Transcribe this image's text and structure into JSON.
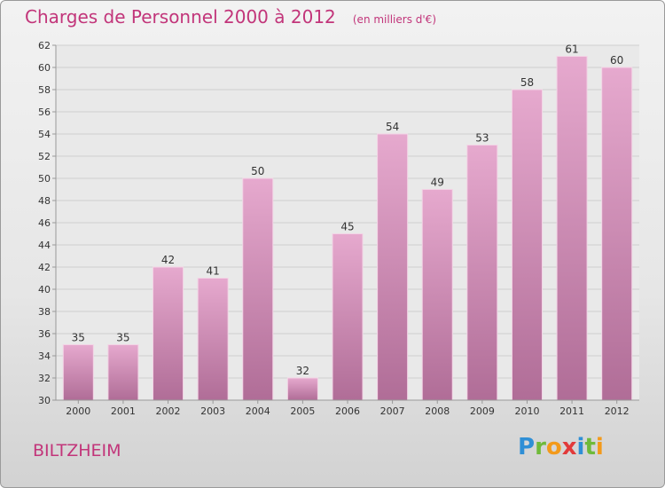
{
  "title": "Charges de Personnel 2000 à 2012",
  "subtitle": "(en milliers d'€)",
  "commune": "BILTZHEIM",
  "brand": {
    "letters": [
      "P",
      "r",
      "o",
      "x",
      "i",
      "t",
      "i"
    ],
    "colors": [
      "#2f8fd6",
      "#6fba3a",
      "#f39a1b",
      "#e23a3a",
      "#2f8fd6",
      "#6fba3a",
      "#f39a1b"
    ]
  },
  "colors": {
    "bar": "#d98cb8",
    "bar_dark": "#b76a98",
    "title": "#c2357a"
  },
  "chart_data": {
    "type": "bar",
    "title": "Charges de Personnel 2000 à 2012",
    "subtitle": "(en milliers d'€)",
    "categories": [
      "2000",
      "2001",
      "2002",
      "2003",
      "2004",
      "2005",
      "2006",
      "2007",
      "2008",
      "2009",
      "2010",
      "2011",
      "2012"
    ],
    "values": [
      35,
      35,
      42,
      41,
      50,
      32,
      45,
      54,
      49,
      53,
      58,
      61,
      60
    ],
    "ylim": [
      30,
      62
    ],
    "yticks": [
      30,
      32,
      34,
      36,
      38,
      40,
      42,
      44,
      46,
      48,
      50,
      52,
      54,
      56,
      58,
      60,
      62
    ],
    "grid": true,
    "legend": "none"
  }
}
